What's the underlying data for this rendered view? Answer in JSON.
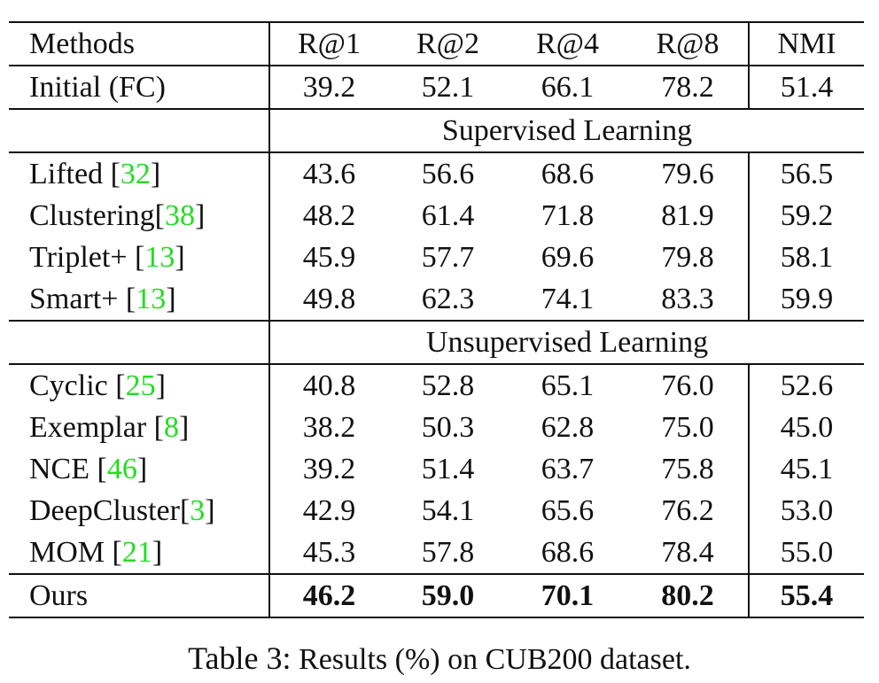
{
  "table": {
    "headers": [
      "Methods",
      "R@1",
      "R@2",
      "R@4",
      "R@8",
      "NMI"
    ],
    "citation_color": "#22dd22",
    "initial": {
      "method": "Initial (FC)",
      "cite": "",
      "values": [
        "39.2",
        "52.1",
        "66.1",
        "78.2",
        "51.4"
      ]
    },
    "sections": [
      {
        "title": "Supervised Learning",
        "rows": [
          {
            "method": "Lifted ",
            "cite": "32",
            "values": [
              "43.6",
              "56.6",
              "68.6",
              "79.6",
              "56.5"
            ]
          },
          {
            "method": "Clustering",
            "cite": "38",
            "values": [
              "48.2",
              "61.4",
              "71.8",
              "81.9",
              "59.2"
            ]
          },
          {
            "method": "Triplet+ ",
            "cite": "13",
            "values": [
              "45.9",
              "57.7",
              "69.6",
              "79.8",
              "58.1"
            ]
          },
          {
            "method": "Smart+ ",
            "cite": "13",
            "values": [
              "49.8",
              "62.3",
              "74.1",
              "83.3",
              "59.9"
            ]
          }
        ]
      },
      {
        "title": "Unsupervised Learning",
        "rows": [
          {
            "method": "Cyclic ",
            "cite": "25",
            "values": [
              "40.8",
              "52.8",
              "65.1",
              "76.0",
              "52.6"
            ]
          },
          {
            "method": "Exemplar ",
            "cite": "8",
            "values": [
              "38.2",
              "50.3",
              "62.8",
              "75.0",
              "45.0"
            ]
          },
          {
            "method": "NCE ",
            "cite": "46",
            "values": [
              "39.2",
              "51.4",
              "63.7",
              "75.8",
              "45.1"
            ]
          },
          {
            "method": "DeepCluster",
            "cite": "3",
            "values": [
              "42.9",
              "54.1",
              "65.6",
              "76.2",
              "53.0"
            ]
          },
          {
            "method": "MOM ",
            "cite": "21",
            "values": [
              "45.3",
              "57.8",
              "68.6",
              "78.4",
              "55.0"
            ]
          }
        ]
      }
    ],
    "ours": {
      "method": "Ours",
      "cite": "",
      "values": [
        "46.2",
        "59.0",
        "70.1",
        "80.2",
        "55.4"
      ]
    }
  },
  "caption": {
    "label": "Table 3:",
    "text": " Results (%) on CUB200 dataset."
  }
}
